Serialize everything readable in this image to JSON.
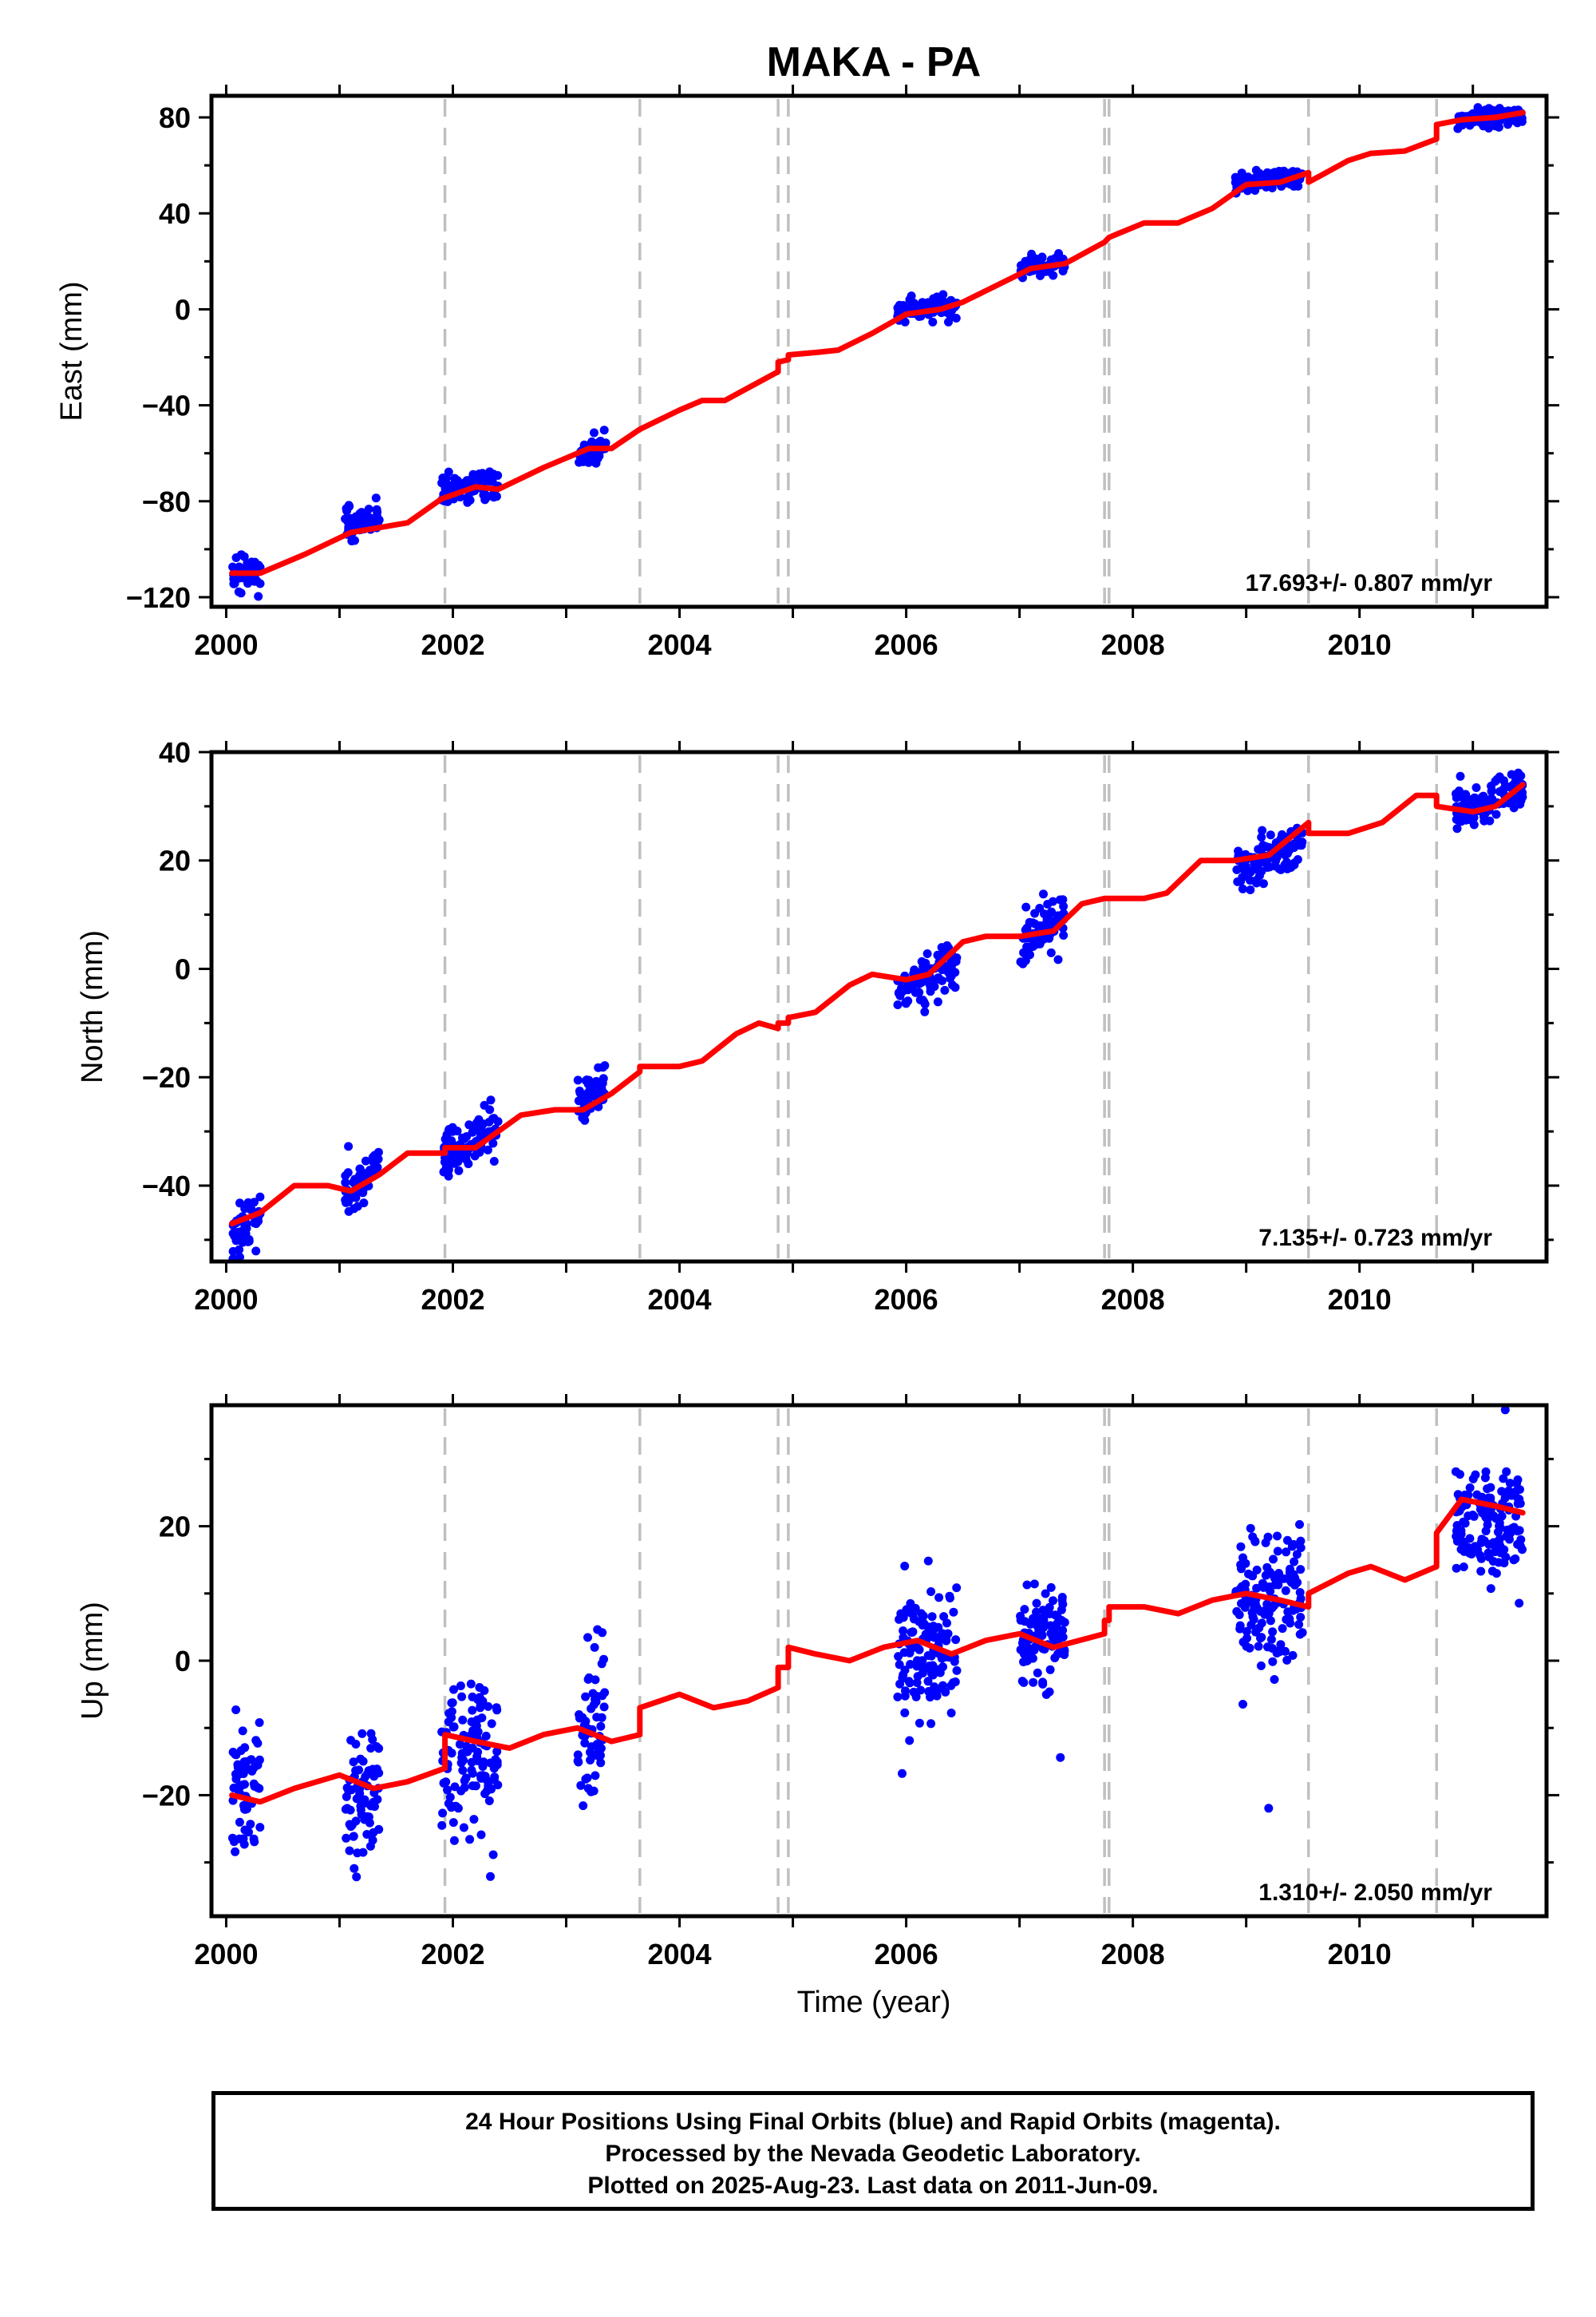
{
  "title": "MAKA - PA",
  "xlabel": "Time (year)",
  "footer": {
    "line1": "24 Hour Positions Using Final Orbits (blue) and Rapid Orbits (magenta).",
    "line2": "Processed by the Nevada Geodetic Laboratory.",
    "line3": "Plotted on 2025-Aug-23. Last data on 2011-Jun-09."
  },
  "colors": {
    "data": "#0000ff",
    "model": "#ff0000",
    "steps": "#c0c0c0",
    "frame": "#000000"
  },
  "chart_data": [
    {
      "type": "scatter",
      "ylabel": "East (mm)",
      "rate": "17.693+/- 0.807 mm/yr",
      "xlim": [
        1999.87,
        2011.65
      ],
      "ylim": [
        -124,
        89
      ],
      "xticks": [
        2000,
        2002,
        2004,
        2006,
        2008,
        2010
      ],
      "yticks": [
        -120,
        -80,
        -40,
        0,
        40,
        80
      ],
      "ytick_labels": [
        "−120",
        "−80",
        "−40",
        "0",
        "40",
        "80"
      ],
      "step_lines": [
        2001.93,
        2003.65,
        2004.87,
        2004.96,
        2007.75,
        2007.79,
        2009.55,
        2010.68
      ],
      "data_clusters": [
        {
          "start": 2000.05,
          "end": 2000.3,
          "center": -110,
          "spread": 3.5
        },
        {
          "start": 2001.05,
          "end": 2001.35,
          "center": -89,
          "spread": 2.5
        },
        {
          "start": 2001.9,
          "end": 2002.4,
          "center": -74,
          "spread": 3.0
        },
        {
          "start": 2003.1,
          "end": 2003.35,
          "center": -59,
          "spread": 2.5
        },
        {
          "start": 2005.92,
          "end": 2006.45,
          "center": 0,
          "spread": 2.0
        },
        {
          "start": 2007.0,
          "end": 2007.4,
          "center": 18,
          "spread": 1.8
        },
        {
          "start": 2008.9,
          "end": 2009.5,
          "center": 54,
          "spread": 1.8
        },
        {
          "start": 2010.85,
          "end": 2011.44,
          "center": 80,
          "spread": 1.5
        }
      ],
      "model": [
        [
          2000.05,
          -110
        ],
        [
          2000.3,
          -110
        ],
        [
          2000.7,
          -102
        ],
        [
          2001.1,
          -93
        ],
        [
          2001.35,
          -91
        ],
        [
          2001.6,
          -89
        ],
        [
          2001.9,
          -79
        ],
        [
          2002.2,
          -74
        ],
        [
          2002.4,
          -75
        ],
        [
          2002.8,
          -66
        ],
        [
          2003.2,
          -58
        ],
        [
          2003.4,
          -58
        ],
        [
          2003.65,
          -50
        ],
        [
          2004.0,
          -42
        ],
        [
          2004.2,
          -38
        ],
        [
          2004.4,
          -38
        ],
        [
          2004.87,
          -26
        ],
        [
          2004.87,
          -22
        ],
        [
          2004.96,
          -21
        ],
        [
          2004.96,
          -19
        ],
        [
          2005.2,
          -18
        ],
        [
          2005.4,
          -17
        ],
        [
          2005.7,
          -10
        ],
        [
          2006.0,
          -2
        ],
        [
          2006.3,
          0
        ],
        [
          2006.5,
          3
        ],
        [
          2006.8,
          10
        ],
        [
          2007.1,
          17
        ],
        [
          2007.4,
          19
        ],
        [
          2007.75,
          28
        ],
        [
          2007.79,
          30
        ],
        [
          2008.1,
          36
        ],
        [
          2008.4,
          36
        ],
        [
          2008.7,
          42
        ],
        [
          2009.0,
          52
        ],
        [
          2009.3,
          53
        ],
        [
          2009.55,
          57
        ],
        [
          2009.55,
          53
        ],
        [
          2009.9,
          62
        ],
        [
          2010.1,
          65
        ],
        [
          2010.4,
          66
        ],
        [
          2010.68,
          71
        ],
        [
          2010.68,
          77
        ],
        [
          2010.9,
          79
        ],
        [
          2011.2,
          80
        ],
        [
          2011.44,
          82
        ]
      ]
    },
    {
      "type": "scatter",
      "ylabel": "North (mm)",
      "rate": "7.135+/- 0.723 mm/yr",
      "xlim": [
        1999.87,
        2011.65
      ],
      "ylim": [
        -54,
        40
      ],
      "xticks": [
        2000,
        2002,
        2004,
        2006,
        2008,
        2010
      ],
      "yticks": [
        -40,
        -20,
        0,
        20,
        40
      ],
      "ytick_labels": [
        "−40",
        "−20",
        "0",
        "20",
        "40"
      ],
      "step_lines": [
        2001.93,
        2003.65,
        2004.87,
        2004.96,
        2007.75,
        2007.79,
        2009.55,
        2010.68
      ],
      "data_clusters": [
        {
          "start": 2000.05,
          "end": 2000.3,
          "center": -47,
          "spread": 2.0
        },
        {
          "start": 2001.05,
          "end": 2001.35,
          "center": -39,
          "spread": 2.0
        },
        {
          "start": 2001.9,
          "end": 2002.4,
          "center": -32,
          "spread": 2.5
        },
        {
          "start": 2003.1,
          "end": 2003.35,
          "center": -23,
          "spread": 2.2
        },
        {
          "start": 2005.92,
          "end": 2006.45,
          "center": -1,
          "spread": 2.0
        },
        {
          "start": 2007.0,
          "end": 2007.4,
          "center": 7,
          "spread": 2.2
        },
        {
          "start": 2008.9,
          "end": 2009.5,
          "center": 21,
          "spread": 2.0
        },
        {
          "start": 2010.85,
          "end": 2011.44,
          "center": 31,
          "spread": 2.0
        }
      ],
      "model": [
        [
          2000.05,
          -47
        ],
        [
          2000.3,
          -45
        ],
        [
          2000.6,
          -40
        ],
        [
          2000.9,
          -40
        ],
        [
          2001.1,
          -41
        ],
        [
          2001.35,
          -38
        ],
        [
          2001.6,
          -34
        ],
        [
          2001.93,
          -34
        ],
        [
          2001.93,
          -33
        ],
        [
          2002.2,
          -33
        ],
        [
          2002.4,
          -30
        ],
        [
          2002.6,
          -27
        ],
        [
          2002.9,
          -26
        ],
        [
          2003.15,
          -26
        ],
        [
          2003.4,
          -23
        ],
        [
          2003.65,
          -19
        ],
        [
          2003.65,
          -18
        ],
        [
          2004.0,
          -18
        ],
        [
          2004.2,
          -17
        ],
        [
          2004.5,
          -12
        ],
        [
          2004.7,
          -10
        ],
        [
          2004.87,
          -11
        ],
        [
          2004.87,
          -10
        ],
        [
          2004.96,
          -10
        ],
        [
          2004.96,
          -9
        ],
        [
          2005.2,
          -8
        ],
        [
          2005.5,
          -3
        ],
        [
          2005.7,
          -1
        ],
        [
          2006.0,
          -2
        ],
        [
          2006.2,
          -1
        ],
        [
          2006.5,
          5
        ],
        [
          2006.7,
          6
        ],
        [
          2007.0,
          6
        ],
        [
          2007.3,
          7
        ],
        [
          2007.55,
          12
        ],
        [
          2007.75,
          13
        ],
        [
          2007.79,
          13
        ],
        [
          2008.1,
          13
        ],
        [
          2008.3,
          14
        ],
        [
          2008.6,
          20
        ],
        [
          2008.9,
          20
        ],
        [
          2009.2,
          21
        ],
        [
          2009.55,
          27
        ],
        [
          2009.55,
          25
        ],
        [
          2009.9,
          25
        ],
        [
          2010.2,
          27
        ],
        [
          2010.5,
          32
        ],
        [
          2010.68,
          32
        ],
        [
          2010.68,
          30
        ],
        [
          2011.0,
          29
        ],
        [
          2011.2,
          30
        ],
        [
          2011.44,
          34
        ]
      ]
    },
    {
      "type": "scatter",
      "ylabel": "Up (mm)",
      "rate": "1.310+/- 2.050 mm/yr",
      "xlim": [
        1999.87,
        2011.65
      ],
      "ylim": [
        -38,
        38
      ],
      "xticks": [
        2000,
        2002,
        2004,
        2006,
        2008,
        2010
      ],
      "yticks": [
        -20,
        0,
        20
      ],
      "ytick_labels": [
        "−20",
        "0",
        "20"
      ],
      "step_lines": [
        2001.93,
        2003.65,
        2004.87,
        2004.96,
        2007.75,
        2007.79,
        2009.55,
        2010.68
      ],
      "data_clusters": [
        {
          "start": 2000.05,
          "end": 2000.3,
          "center": -19,
          "spread": 5.0
        },
        {
          "start": 2001.05,
          "end": 2001.35,
          "center": -20,
          "spread": 5.5
        },
        {
          "start": 2001.9,
          "end": 2002.4,
          "center": -14,
          "spread": 5.0
        },
        {
          "start": 2003.1,
          "end": 2003.35,
          "center": -10,
          "spread": 5.5
        },
        {
          "start": 2005.92,
          "end": 2006.45,
          "center": 1,
          "spread": 4.5
        },
        {
          "start": 2007.0,
          "end": 2007.4,
          "center": 3,
          "spread": 3.5
        },
        {
          "start": 2008.9,
          "end": 2009.5,
          "center": 9,
          "spread": 4.5
        },
        {
          "start": 2010.85,
          "end": 2011.44,
          "center": 21,
          "spread": 4.0
        }
      ],
      "model": [
        [
          2000.05,
          -20
        ],
        [
          2000.3,
          -21
        ],
        [
          2000.6,
          -19
        ],
        [
          2001.0,
          -17
        ],
        [
          2001.3,
          -19
        ],
        [
          2001.6,
          -18
        ],
        [
          2001.93,
          -16
        ],
        [
          2001.93,
          -11
        ],
        [
          2002.2,
          -12
        ],
        [
          2002.5,
          -13
        ],
        [
          2002.8,
          -11
        ],
        [
          2003.1,
          -10
        ],
        [
          2003.4,
          -12
        ],
        [
          2003.65,
          -11
        ],
        [
          2003.65,
          -7
        ],
        [
          2004.0,
          -5
        ],
        [
          2004.3,
          -7
        ],
        [
          2004.6,
          -6
        ],
        [
          2004.87,
          -4
        ],
        [
          2004.87,
          -1
        ],
        [
          2004.96,
          -1
        ],
        [
          2004.96,
          2
        ],
        [
          2005.2,
          1
        ],
        [
          2005.5,
          0
        ],
        [
          2005.8,
          2
        ],
        [
          2006.1,
          3
        ],
        [
          2006.4,
          1
        ],
        [
          2006.7,
          3
        ],
        [
          2007.0,
          4
        ],
        [
          2007.3,
          2
        ],
        [
          2007.75,
          4
        ],
        [
          2007.75,
          6
        ],
        [
          2007.79,
          6
        ],
        [
          2007.79,
          8
        ],
        [
          2008.1,
          8
        ],
        [
          2008.4,
          7
        ],
        [
          2008.7,
          9
        ],
        [
          2009.0,
          10
        ],
        [
          2009.3,
          9
        ],
        [
          2009.55,
          8
        ],
        [
          2009.55,
          10
        ],
        [
          2009.9,
          13
        ],
        [
          2010.1,
          14
        ],
        [
          2010.4,
          12
        ],
        [
          2010.68,
          14
        ],
        [
          2010.68,
          19
        ],
        [
          2010.9,
          24
        ],
        [
          2011.2,
          23
        ],
        [
          2011.44,
          22
        ]
      ]
    }
  ]
}
